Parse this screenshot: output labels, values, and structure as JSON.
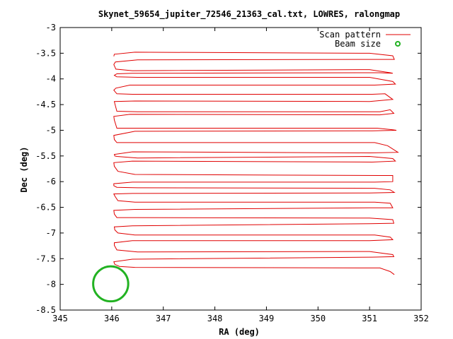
{
  "chart_data": {
    "type": "line",
    "title": "Skynet_59654_jupiter_72546_21363_cal.txt, LOWRES, ralongmap",
    "xlabel": "RA (deg)",
    "ylabel": "Dec (deg)",
    "xlim": [
      345,
      352
    ],
    "ylim": [
      -8.5,
      -3
    ],
    "x_ticks": [
      345,
      346,
      347,
      348,
      349,
      350,
      351,
      352
    ],
    "y_ticks": [
      -3,
      -3.5,
      -4,
      -4.5,
      -5,
      -5.5,
      -6,
      -6.5,
      -7,
      -7.5,
      -8,
      -8.5
    ],
    "x_tick_labels": [
      "345",
      "346",
      "347",
      "348",
      "349",
      "350",
      "351",
      "352"
    ],
    "y_tick_labels": [
      "-3",
      "-3.5",
      "-4",
      "-4.5",
      "-5",
      "-5.5",
      "-6",
      "-6.5",
      "-7",
      "-7.5",
      "-8",
      "-8.5"
    ],
    "legend_position": "top-right",
    "series": [
      {
        "name": "Scan pattern",
        "color": "#e00000",
        "style": "line",
        "x": [
          346.04,
          346.05,
          346.45,
          351.0,
          351.45,
          351.48,
          351.0,
          346.5,
          346.07,
          346.04,
          346.08,
          346.4,
          351.0,
          351.4,
          351.45,
          351.2,
          346.4,
          346.1,
          346.05,
          346.1,
          346.5,
          351.0,
          351.45,
          351.5,
          351.1,
          346.35,
          346.08,
          346.04,
          346.1,
          346.4,
          351.05,
          351.3,
          351.45,
          351.0,
          346.45,
          346.05,
          346.06,
          346.1,
          346.5,
          351.2,
          351.4,
          351.47,
          351.2,
          346.35,
          346.04,
          346.05,
          346.1,
          346.45,
          351.15,
          351.45,
          351.52,
          351.05,
          346.45,
          346.04,
          346.05,
          346.1,
          346.45,
          351.1,
          351.35,
          351.55,
          351.0,
          346.4,
          346.05,
          346.06,
          346.1,
          346.5,
          351.0,
          351.45,
          351.5,
          351.05,
          346.4,
          346.04,
          346.05,
          346.12,
          346.45,
          351.2,
          351.45,
          351.45,
          351.1,
          346.4,
          346.04,
          346.04,
          346.1,
          346.5,
          351.1,
          351.4,
          351.48,
          351.0,
          346.4,
          346.04,
          346.06,
          346.12,
          346.45,
          351.1,
          351.4,
          351.45,
          351.0,
          346.45,
          346.04,
          346.05,
          346.1,
          346.5,
          351.0,
          351.45,
          351.47,
          351.0,
          346.4,
          346.05,
          346.06,
          346.12,
          346.45,
          351.1,
          351.4,
          351.45,
          351.0,
          346.4,
          346.05,
          346.05,
          346.1,
          346.5,
          351.0,
          351.45,
          351.47,
          351.05,
          346.4,
          346.04,
          346.06,
          346.15,
          346.45,
          351.2,
          351.4,
          351.48
        ],
        "y": [
          -3.56,
          -3.52,
          -3.48,
          -3.5,
          -3.55,
          -3.62,
          -3.62,
          -3.63,
          -3.67,
          -3.72,
          -3.81,
          -3.84,
          -3.82,
          -3.88,
          -3.89,
          -3.88,
          -3.89,
          -3.9,
          -3.93,
          -3.96,
          -3.97,
          -3.97,
          -4.05,
          -4.1,
          -4.12,
          -4.12,
          -4.18,
          -4.22,
          -4.29,
          -4.3,
          -4.3,
          -4.29,
          -4.4,
          -4.44,
          -4.43,
          -4.44,
          -4.48,
          -4.63,
          -4.64,
          -4.64,
          -4.6,
          -4.67,
          -4.7,
          -4.69,
          -4.73,
          -4.8,
          -4.96,
          -4.96,
          -4.96,
          -4.99,
          -5.0,
          -5.01,
          -5.02,
          -5.1,
          -5.18,
          -5.24,
          -5.24,
          -5.24,
          -5.3,
          -5.43,
          -5.44,
          -5.42,
          -5.47,
          -5.5,
          -5.51,
          -5.54,
          -5.51,
          -5.55,
          -5.6,
          -5.62,
          -5.6,
          -5.63,
          -5.7,
          -5.8,
          -5.86,
          -5.88,
          -5.88,
          -6.0,
          -6.01,
          -6.01,
          -6.04,
          -6.08,
          -6.11,
          -6.12,
          -6.13,
          -6.16,
          -6.21,
          -6.22,
          -6.23,
          -6.24,
          -6.28,
          -6.37,
          -6.4,
          -6.4,
          -6.42,
          -6.51,
          -6.51,
          -6.54,
          -6.56,
          -6.63,
          -6.7,
          -6.7,
          -6.71,
          -6.74,
          -6.81,
          -6.82,
          -6.86,
          -6.88,
          -6.94,
          -7.0,
          -7.04,
          -7.04,
          -7.08,
          -7.13,
          -7.15,
          -7.15,
          -7.19,
          -7.24,
          -7.33,
          -7.37,
          -7.36,
          -7.42,
          -7.46,
          -7.47,
          -7.51,
          -7.56,
          -7.61,
          -7.65,
          -7.67,
          -7.68,
          -7.75,
          -7.81
        ]
      },
      {
        "name": "Beam size",
        "color": "#22b222",
        "style": "circle",
        "center_ra": 345.98,
        "center_dec": -7.99,
        "radius_deg": 0.34
      }
    ]
  }
}
